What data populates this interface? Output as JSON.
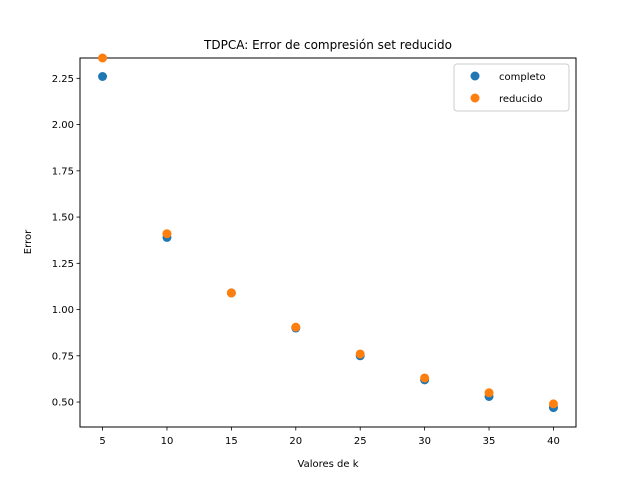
{
  "chart_data": {
    "type": "scatter",
    "title": "TDPCA: Error de compresión set reducido",
    "xlabel": "Valores de k",
    "ylabel": "Error",
    "xlim": [
      3.25,
      41.75
    ],
    "ylim": [
      0.365,
      2.36
    ],
    "x_ticks": [
      5,
      10,
      15,
      20,
      25,
      30,
      35,
      40
    ],
    "y_ticks": [
      0.5,
      0.75,
      1.0,
      1.25,
      1.5,
      1.75,
      2.0,
      2.25
    ],
    "y_tick_labels": [
      "0.50",
      "0.75",
      "1.00",
      "1.25",
      "1.50",
      "1.75",
      "2.00",
      "2.25"
    ],
    "grid": false,
    "legend_position": "top-right",
    "series": [
      {
        "name": "completo",
        "color": "#1f77b4",
        "x": [
          5,
          10,
          15,
          20,
          25,
          30,
          35,
          40
        ],
        "y": [
          2.26,
          1.39,
          1.09,
          0.9,
          0.75,
          0.62,
          0.53,
          0.47
        ]
      },
      {
        "name": "reducido",
        "color": "#ff7f0e",
        "x": [
          5,
          10,
          15,
          20,
          25,
          30,
          35,
          40
        ],
        "y": [
          2.36,
          1.41,
          1.09,
          0.905,
          0.76,
          0.63,
          0.55,
          0.49
        ]
      }
    ]
  }
}
